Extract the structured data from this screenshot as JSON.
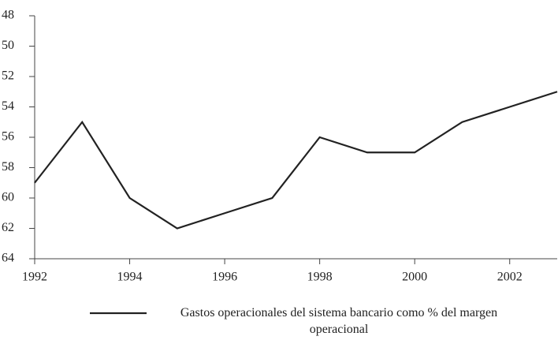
{
  "chart_data": {
    "type": "line",
    "x": [
      1992,
      1993,
      1994,
      1995,
      1996,
      1997,
      1998,
      1999,
      2000,
      2001,
      2002,
      2003
    ],
    "series": [
      {
        "name": "Gastos operacionales del sistema bancario como % del margen operacional",
        "color": "#222222",
        "values": [
          59,
          55,
          60,
          62,
          61,
          60,
          56,
          57,
          57,
          55,
          54,
          53
        ]
      }
    ],
    "xlim": [
      1992,
      2003
    ],
    "xticks": [
      1992,
      1994,
      1996,
      1998,
      2000,
      2002
    ],
    "ylim": [
      64,
      48
    ],
    "yticks": [
      48,
      50,
      52,
      54,
      56,
      58,
      60,
      62,
      64
    ],
    "grid": false
  }
}
